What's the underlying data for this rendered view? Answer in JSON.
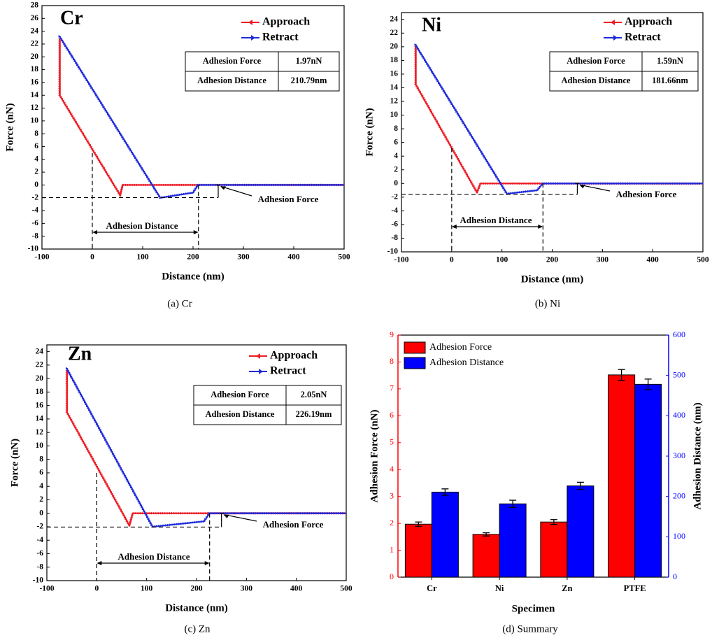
{
  "colors": {
    "approach": "#ee1c25",
    "retract": "#1f2bdb",
    "bar_force": "#ff0000",
    "bar_distance": "#0000ff",
    "axis": "#000000"
  },
  "chart_data": [
    {
      "id": "cr",
      "type": "line",
      "panel_label": "Cr",
      "caption": "(a) Cr",
      "xlabel": "Distance (nm)",
      "ylabel": "Force (nN)",
      "xlim": [
        -100,
        500
      ],
      "ylim": [
        -10,
        28
      ],
      "xticks": [
        -100,
        0,
        100,
        200,
        300,
        400,
        500
      ],
      "yticks": [
        -10,
        -8,
        -6,
        -4,
        -2,
        0,
        2,
        4,
        6,
        8,
        10,
        12,
        14,
        16,
        18,
        20,
        22,
        24,
        26,
        28
      ],
      "legend": [
        "Approach",
        "Retract"
      ],
      "series": [
        {
          "name": "Approach",
          "points": [
            [
              -65,
              22.8
            ],
            [
              -65,
              14
            ],
            [
              55,
              -1.6
            ],
            [
              60,
              0
            ],
            [
              500,
              0
            ]
          ]
        },
        {
          "name": "Retract",
          "points": [
            [
              -65,
              23.2
            ],
            [
              135,
              -2
            ],
            [
              200,
              -1.2
            ],
            [
              210,
              0
            ],
            [
              500,
              0
            ]
          ]
        }
      ],
      "table": [
        {
          "label": "Adhesion Force",
          "value": "1.97nN"
        },
        {
          "label": "Adhesion Distance",
          "value": "210.79nm"
        }
      ],
      "annotations": {
        "force_label": "Adhesion Force",
        "distance_label": "Adhesion Distance",
        "min_force": -1.97,
        "snap_force": 5.0,
        "distance_end": 210.79,
        "marker_x": 250
      }
    },
    {
      "id": "ni",
      "type": "line",
      "panel_label": "Ni",
      "caption": "(b) Ni",
      "xlabel": "Distance (nm)",
      "ylabel": "Force (nN)",
      "xlim": [
        -100,
        500
      ],
      "ylim": [
        -10,
        25
      ],
      "xticks": [
        -100,
        0,
        100,
        200,
        300,
        400,
        500
      ],
      "yticks": [
        -10,
        -8,
        -6,
        -4,
        -2,
        0,
        2,
        4,
        6,
        8,
        10,
        12,
        14,
        16,
        18,
        20,
        22,
        24
      ],
      "legend": [
        "Approach",
        "Retract"
      ],
      "series": [
        {
          "name": "Approach",
          "points": [
            [
              -72,
              20
            ],
            [
              -72,
              14.5
            ],
            [
              50,
              -1.3
            ],
            [
              57,
              0
            ],
            [
              500,
              0
            ]
          ]
        },
        {
          "name": "Retract",
          "points": [
            [
              -72,
              20.3
            ],
            [
              110,
              -1.5
            ],
            [
              170,
              -1.0
            ],
            [
              181.66,
              0
            ],
            [
              500,
              0
            ]
          ]
        }
      ],
      "table": [
        {
          "label": "Adhesion Force",
          "value": "1.59nN"
        },
        {
          "label": "Adhesion Distance",
          "value": "181.66nm"
        }
      ],
      "annotations": {
        "force_label": "Adhesion Force",
        "distance_label": "Adhesion Distance",
        "min_force": -1.59,
        "snap_force": 5.2,
        "distance_end": 181.66,
        "marker_x": 250
      }
    },
    {
      "id": "zn",
      "type": "line",
      "panel_label": "Zn",
      "caption": "(c) Zn",
      "xlabel": "Distance (nm)",
      "ylabel": "Force (nN)",
      "xlim": [
        -100,
        500
      ],
      "ylim": [
        -10,
        25
      ],
      "xticks": [
        -100,
        0,
        100,
        200,
        300,
        400,
        500
      ],
      "yticks": [
        -10,
        -8,
        -6,
        -4,
        -2,
        0,
        2,
        4,
        6,
        8,
        10,
        12,
        14,
        16,
        18,
        20,
        22,
        24
      ],
      "legend": [
        "Approach",
        "Retract"
      ],
      "series": [
        {
          "name": "Approach",
          "points": [
            [
              -60,
              21.2
            ],
            [
              -60,
              15
            ],
            [
              65,
              -1.8
            ],
            [
              72,
              0
            ],
            [
              500,
              0
            ]
          ]
        },
        {
          "name": "Retract",
          "points": [
            [
              -60,
              21.5
            ],
            [
              112,
              -2.0
            ],
            [
              215,
              -1.2
            ],
            [
              226.19,
              0
            ],
            [
              500,
              0
            ]
          ]
        }
      ],
      "table": [
        {
          "label": "Adhesion Force",
          "value": "2.05nN"
        },
        {
          "label": "Adhesion Distance",
          "value": "226.19nm"
        }
      ],
      "annotations": {
        "force_label": "Adhesion Force",
        "distance_label": "Adhesion Distance",
        "min_force": -2.05,
        "snap_force": 6.0,
        "distance_end": 226.19,
        "marker_x": 250
      }
    },
    {
      "id": "summary",
      "type": "bar",
      "caption": "(d) Summary",
      "xlabel": "Specimen",
      "ylabel": "Adhesion Force (nN)",
      "ylabel_right": "Adhesion Distance (nm)",
      "categories": [
        "Cr",
        "Ni",
        "Zn",
        "PTFE"
      ],
      "ylim": [
        0,
        9
      ],
      "ylim_right": [
        0,
        600
      ],
      "yticks": [
        0,
        1,
        2,
        3,
        4,
        5,
        6,
        7,
        8,
        9
      ],
      "yticks_right": [
        0,
        100,
        200,
        300,
        400,
        500,
        600
      ],
      "legend": [
        "Adhesion Force",
        "Adhesion Distance"
      ],
      "series": [
        {
          "name": "Adhesion Force",
          "axis": "left",
          "values": [
            1.97,
            1.59,
            2.05,
            7.52
          ],
          "errors": [
            0.08,
            0.06,
            0.09,
            0.2
          ]
        },
        {
          "name": "Adhesion Distance",
          "axis": "right",
          "values": [
            210.79,
            181.66,
            226.19,
            478
          ],
          "errors": [
            8,
            9,
            9,
            13
          ]
        }
      ]
    }
  ]
}
